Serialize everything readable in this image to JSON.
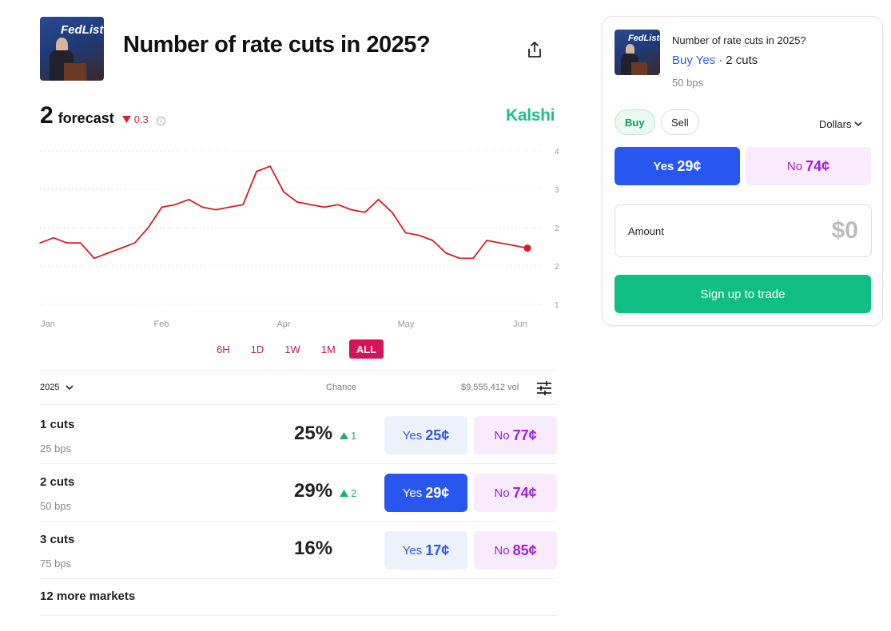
{
  "market": {
    "title": "Number of rate cuts in 2025?",
    "brand": "Kalshi",
    "brand_color": "#1fbf86"
  },
  "icons": {
    "share": "share-icon",
    "info": "info-icon",
    "filter": "sliders-icon",
    "chevron": "chevron-down-icon",
    "delta_down": "triangle-down-icon",
    "delta_up": "triangle-up-icon"
  },
  "thumbnail": {
    "text": "FedListens"
  },
  "forecast": {
    "value": "2",
    "label": "forecast",
    "delta": "0.3",
    "delta_direction": "down",
    "delta_color": "#d8232a"
  },
  "chart_data": {
    "type": "line",
    "series": [
      {
        "color": "#d21f27",
        "x": [
          "Jan 01",
          "Jan 06",
          "Jan 10",
          "Jan 15",
          "Jan 20",
          "Jan 25",
          "Jan 30",
          "Feb 03",
          "Feb 07",
          "Feb 11",
          "Feb 15",
          "Feb 20",
          "Feb 25",
          "Mar 01",
          "Mar 05",
          "Mar 10",
          "Mar 15",
          "Mar 20",
          "Mar 25",
          "Mar 30",
          "Apr 01",
          "Apr 04",
          "Apr 07",
          "Apr 10",
          "Apr 15",
          "Apr 20",
          "Apr 25",
          "Apr 30",
          "May 05",
          "May 10",
          "May 15",
          "May 20",
          "May 25",
          "May 30",
          "Jun 01",
          "Jun 03",
          "Jun 05"
        ],
        "values": [
          2.2,
          2.3,
          2.2,
          2.2,
          1.9,
          2.0,
          2.1,
          2.2,
          2.5,
          2.9,
          2.95,
          3.05,
          2.9,
          2.85,
          2.9,
          2.95,
          3.6,
          3.7,
          3.2,
          3.0,
          2.95,
          2.9,
          2.95,
          2.85,
          2.8,
          3.05,
          2.8,
          2.4,
          2.35,
          2.25,
          2.0,
          1.9,
          1.9,
          2.25,
          2.2,
          2.15,
          2.1
        ]
      }
    ],
    "x_ticks": [
      "Jan",
      "Feb",
      "Apr",
      "May",
      "Jun"
    ],
    "y_ticks": [
      "4",
      "3",
      "2",
      "2",
      "1"
    ],
    "ylim": [
      1,
      4
    ],
    "grid": true,
    "end_marker": true
  },
  "ranges": [
    "6H",
    "1D",
    "1W",
    "1M",
    "ALL"
  ],
  "active_range": "ALL",
  "table": {
    "year": "2025",
    "chance_header": "Chance",
    "volume": "$9,555,412 vol",
    "rows": [
      {
        "name": "1 cuts",
        "bps": "25 bps",
        "chance": "25%",
        "change": "1",
        "yes_label": "Yes",
        "yes_price": "25¢",
        "no_label": "No",
        "no_price": "77¢",
        "selected": false
      },
      {
        "name": "2 cuts",
        "bps": "50 bps",
        "chance": "29%",
        "change": "2",
        "yes_label": "Yes",
        "yes_price": "29¢",
        "no_label": "No",
        "no_price": "74¢",
        "selected": true
      },
      {
        "name": "3 cuts",
        "bps": "75 bps",
        "chance": "16%",
        "change": "",
        "yes_label": "Yes",
        "yes_price": "17¢",
        "no_label": "No",
        "no_price": "85¢",
        "selected": false
      }
    ],
    "more": "12 more markets"
  },
  "panel": {
    "title": "Number of rate cuts in 2025?",
    "buy_yes": "Buy Yes",
    "dot": "·",
    "outcome": "2 cuts",
    "bps": "50 bps",
    "buy": "Buy",
    "sell": "Sell",
    "currency": "Dollars",
    "yes_label": "Yes",
    "yes_price": "29¢",
    "no_label": "No",
    "no_price": "74¢",
    "amount_label": "Amount",
    "amount_value": "$0",
    "signup": "Sign up to trade",
    "signup_color": "#0fbe83"
  }
}
